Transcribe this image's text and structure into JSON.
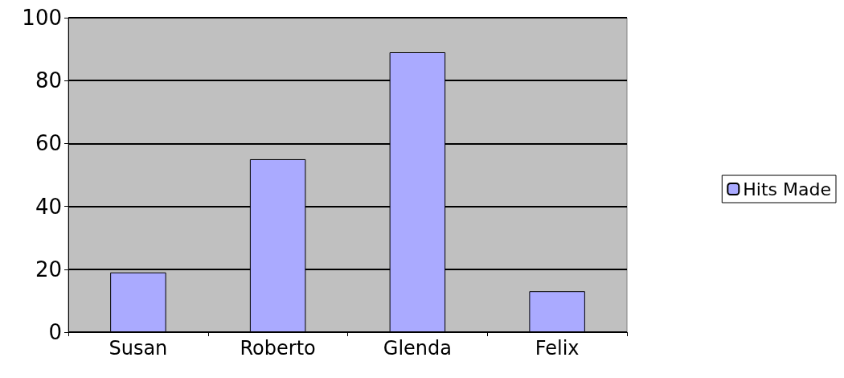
{
  "chart_data": {
    "type": "bar",
    "categories": [
      "Susan",
      "Roberto",
      "Glenda",
      "Felix"
    ],
    "series": [
      {
        "name": "Hits Made",
        "color": "#aaaaff",
        "values": [
          19,
          55,
          89,
          13
        ]
      }
    ],
    "ylim": [
      0,
      100
    ],
    "yticks": [
      0,
      20,
      40,
      60,
      80,
      100
    ],
    "grid": "y",
    "legend": "right"
  }
}
